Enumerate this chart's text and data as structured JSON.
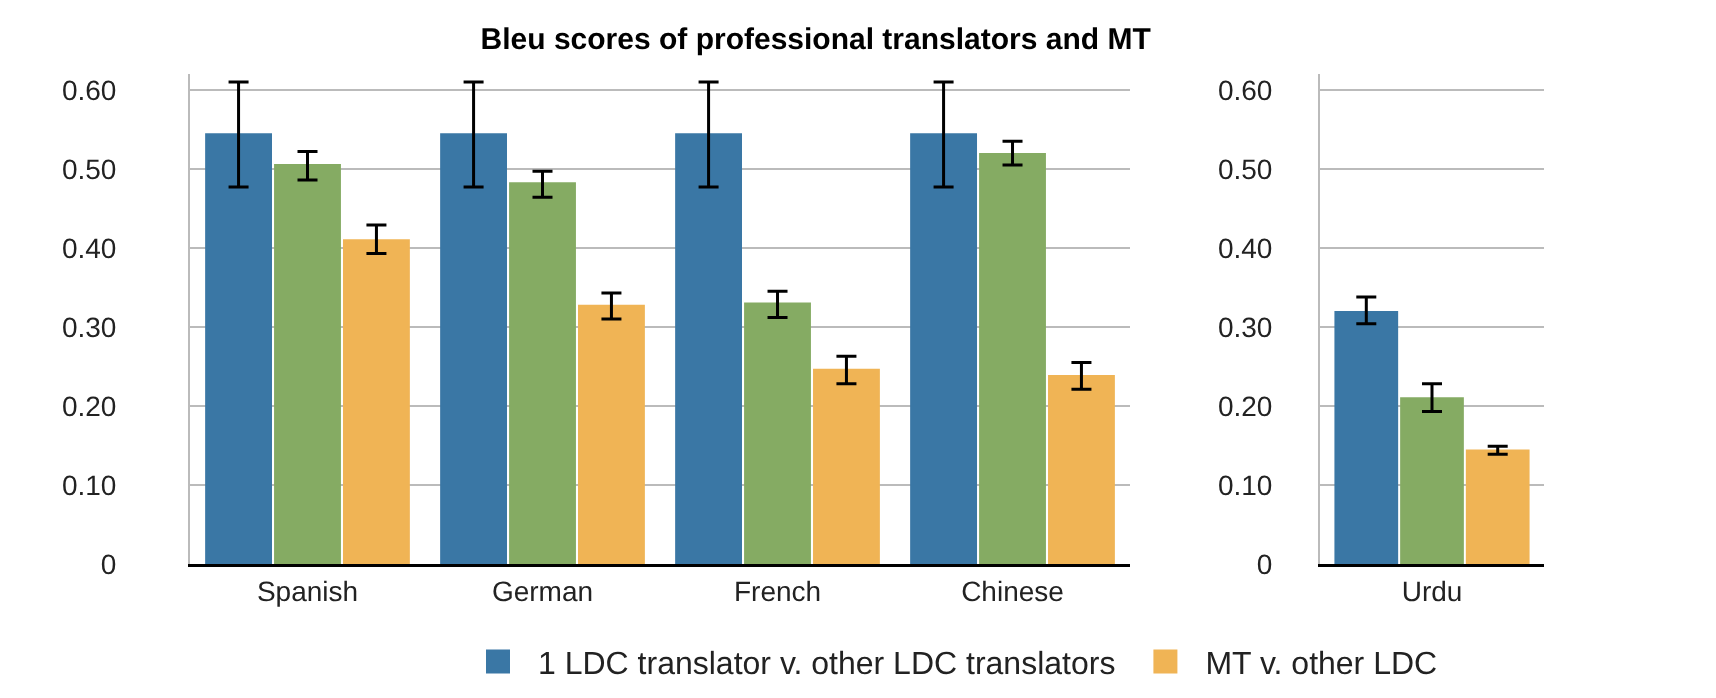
{
  "chart_data": [
    {
      "type": "bar",
      "title": "Bleu scores of professional translators and MT",
      "categories": [
        "Spanish",
        "German",
        "French",
        "Chinese"
      ],
      "ylim": [
        0,
        0.62
      ],
      "yticks": [
        0,
        {
          "value": 0.1,
          "label": "0.10"
        },
        {
          "value": 0.2,
          "label": "0.20"
        },
        {
          "value": 0.3,
          "label": "0.30"
        },
        {
          "value": 0.4,
          "label": "0.40"
        },
        {
          "value": 0.5,
          "label": "0.50"
        },
        {
          "value": 0.6,
          "label": "0.60"
        }
      ],
      "grid": "y",
      "legend": "bottom",
      "series": [
        {
          "name": "1 LDC translator v. other LDC translators",
          "color": "#3a77a5",
          "values": [
            0.545,
            0.545,
            0.545,
            0.545
          ],
          "errors": [
            [
              0.477,
              0.61
            ],
            [
              0.477,
              0.61
            ],
            [
              0.477,
              0.61
            ],
            [
              0.477,
              0.61
            ]
          ]
        },
        {
          "color": "#85ab63",
          "values": [
            0.506,
            0.483,
            0.331,
            0.52
          ],
          "errors": [
            [
              0.486,
              0.522
            ],
            [
              0.464,
              0.497
            ],
            [
              0.312,
              0.345
            ],
            [
              0.505,
              0.535
            ]
          ]
        },
        {
          "name": "MT v. other LDC",
          "color": "#f0b455",
          "values": [
            0.411,
            0.328,
            0.247,
            0.239
          ],
          "errors": [
            [
              0.393,
              0.429
            ],
            [
              0.31,
              0.343
            ],
            [
              0.228,
              0.263
            ],
            [
              0.221,
              0.255
            ]
          ]
        }
      ]
    },
    {
      "type": "bar",
      "categories": [
        "Urdu"
      ],
      "ylim": [
        0,
        0.62
      ],
      "yticks": [
        0,
        {
          "value": 0.1,
          "label": "0.10"
        },
        {
          "value": 0.2,
          "label": "0.20"
        },
        {
          "value": 0.3,
          "label": "0.30"
        },
        {
          "value": 0.4,
          "label": "0.40"
        },
        {
          "value": 0.5,
          "label": "0.50"
        },
        {
          "value": 0.6,
          "label": "0.60"
        }
      ],
      "grid": "y",
      "series": [
        {
          "color": "#3a77a5",
          "values": [
            0.32
          ],
          "errors": [
            [
              0.304,
              0.338
            ]
          ]
        },
        {
          "color": "#85ab63",
          "values": [
            0.211
          ],
          "errors": [
            [
              0.193,
              0.228
            ]
          ]
        },
        {
          "color": "#f0b455",
          "values": [
            0.145
          ],
          "errors": [
            [
              0.139,
              0.149
            ]
          ]
        }
      ]
    }
  ]
}
